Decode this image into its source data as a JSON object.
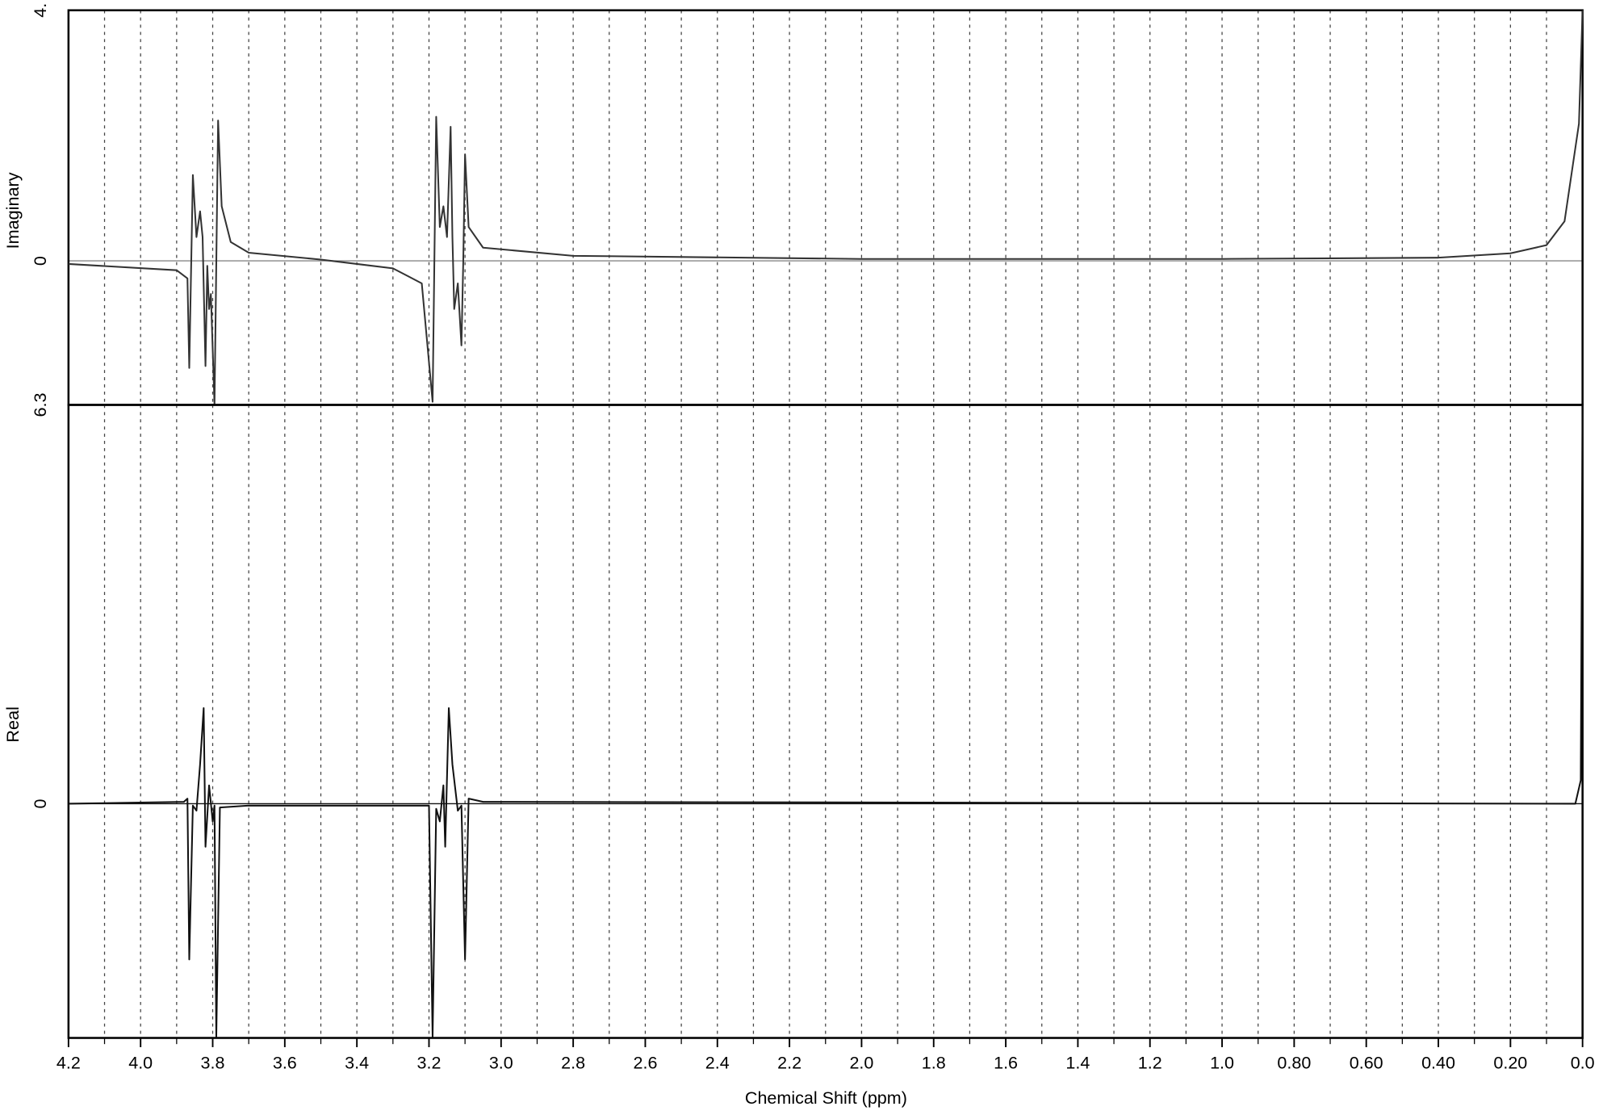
{
  "chart_data": [
    {
      "type": "line",
      "ylabel": "Imaginary",
      "color": "#333333",
      "zero_line_color": "#888888",
      "xlim": [
        4.2,
        0.0
      ],
      "ylim": [
        -2.3,
        4.0
      ],
      "yticks": [
        {
          "value": 4,
          "label": "4."
        },
        0
      ],
      "x": [
        4.2,
        3.9,
        3.87,
        3.865,
        3.855,
        3.845,
        3.835,
        3.828,
        3.82,
        3.815,
        3.81,
        3.805,
        3.795,
        3.785,
        3.775,
        3.75,
        3.7,
        3.5,
        3.4,
        3.3,
        3.22,
        3.19,
        3.18,
        3.17,
        3.16,
        3.15,
        3.14,
        3.135,
        3.13,
        3.12,
        3.11,
        3.105,
        3.1,
        3.09,
        3.05,
        2.8,
        2.0,
        1.0,
        0.4,
        0.2,
        0.1,
        0.05,
        0.01,
        0.0
      ],
      "values": [
        -0.05,
        -0.15,
        -0.28,
        -1.71,
        1.37,
        0.38,
        0.79,
        0.38,
        -1.68,
        -0.08,
        -0.77,
        -0.53,
        -2.3,
        2.24,
        0.87,
        0.3,
        0.13,
        0.02,
        -0.05,
        -0.12,
        -0.36,
        -2.25,
        2.3,
        0.54,
        0.87,
        0.38,
        2.14,
        0.38,
        -0.77,
        -0.36,
        -1.35,
        -0.03,
        1.7,
        0.54,
        0.21,
        0.08,
        0.03,
        0.03,
        0.05,
        0.12,
        0.25,
        0.63,
        2.19,
        4.0
      ]
    },
    {
      "type": "line",
      "ylabel": "Real",
      "color": "#111111",
      "xlim": [
        4.2,
        0.0
      ],
      "ylim": [
        -3.7,
        6.3
      ],
      "yticks": [
        6.3,
        0
      ],
      "xlabel": "Chemical Shift (ppm)",
      "xticks": [
        4.2,
        {
          "value": 4,
          "label": "4.0"
        },
        3.8,
        3.6,
        3.4,
        3.2,
        {
          "value": 3,
          "label": "3.0"
        },
        2.8,
        2.6,
        2.4,
        2.2,
        {
          "value": 2,
          "label": "2.0"
        },
        1.8,
        1.6,
        1.4,
        1.2,
        {
          "value": 1,
          "label": "1.0"
        },
        {
          "value": 0.8,
          "label": "0.80"
        },
        {
          "value": 0.6,
          "label": "0.60"
        },
        {
          "value": 0.4,
          "label": "0.40"
        },
        {
          "value": 0.2,
          "label": "0.20"
        },
        {
          "value": 0,
          "label": "0.0"
        }
      ],
      "xminorticks": [
        4.1,
        3.9,
        3.7,
        3.5,
        3.3,
        3.1,
        2.9,
        2.7,
        2.5,
        2.3,
        2.1,
        1.9,
        1.7,
        1.5,
        1.3,
        1.1,
        0.9,
        0.7,
        0.5,
        0.3,
        0.1
      ],
      "grid": true,
      "x": [
        4.2,
        3.88,
        3.87,
        3.865,
        3.855,
        3.845,
        3.835,
        3.825,
        3.82,
        3.81,
        3.8,
        3.795,
        3.79,
        3.78,
        3.7,
        3.2,
        3.19,
        3.18,
        3.17,
        3.16,
        3.155,
        3.145,
        3.135,
        3.12,
        3.11,
        3.1,
        3.09,
        3.05,
        0.02,
        0.005,
        0.0
      ],
      "values": [
        0,
        0.03,
        0.08,
        -2.46,
        -0.03,
        -0.11,
        0.62,
        1.51,
        -0.68,
        0.29,
        -0.28,
        -0.03,
        -3.68,
        -0.06,
        -0.03,
        -0.03,
        -3.68,
        -0.08,
        -0.28,
        0.29,
        -0.68,
        1.51,
        0.62,
        -0.11,
        -0.03,
        -2.46,
        0.08,
        0.03,
        0,
        0.37,
        6.3
      ]
    }
  ]
}
